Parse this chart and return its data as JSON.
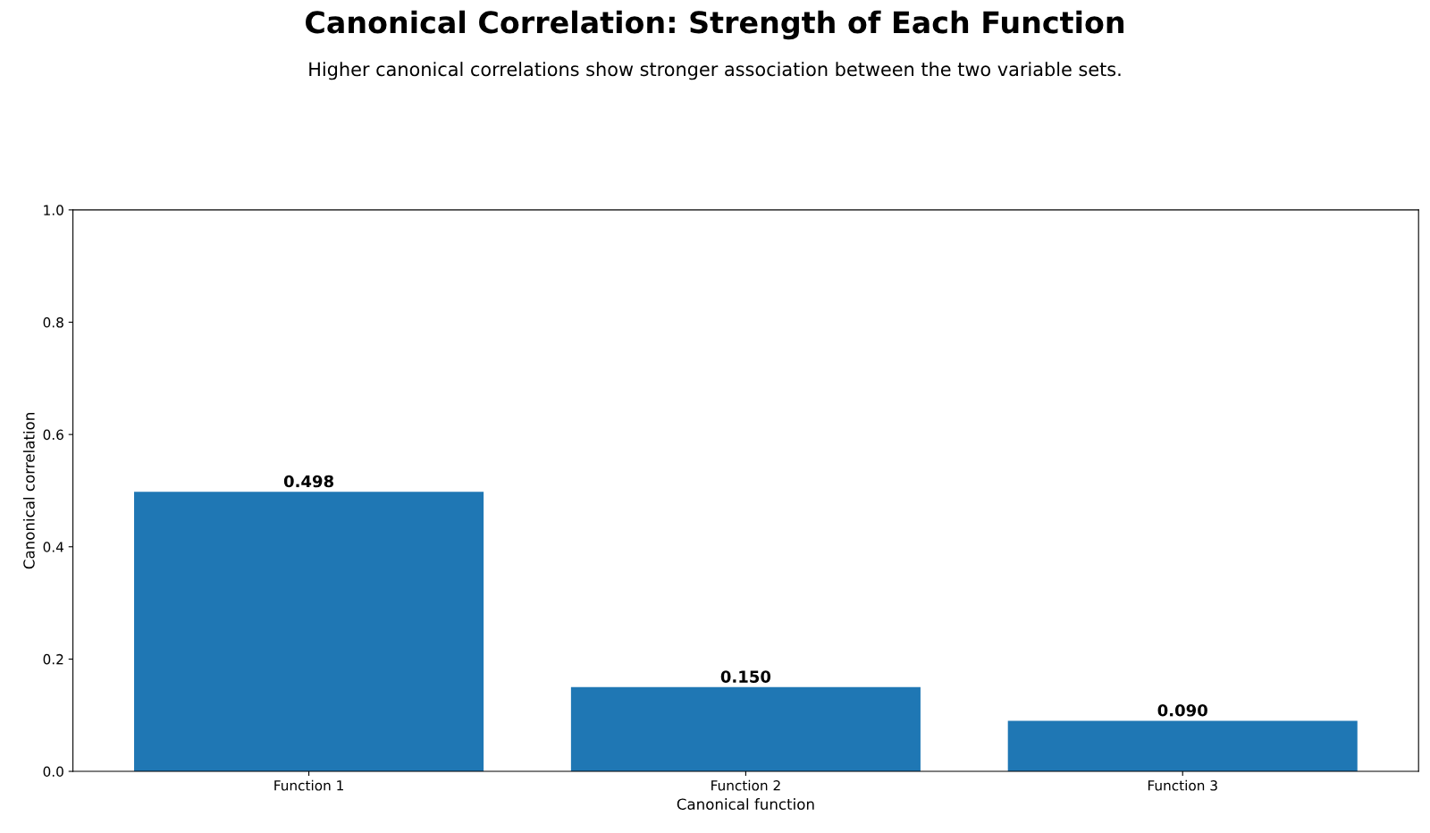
{
  "chart_data": {
    "type": "bar",
    "title": "Canonical Correlation: Strength of Each Function",
    "subtitle": "Higher canonical correlations show stronger association between the two variable sets.",
    "xlabel": "Canonical function",
    "ylabel": "Canonical correlation",
    "categories": [
      "Function 1",
      "Function 2",
      "Function 3"
    ],
    "values": [
      0.498,
      0.15,
      0.09
    ],
    "value_labels": [
      "0.498",
      "0.150",
      "0.090"
    ],
    "color": "#1f77b4",
    "ylim": [
      0,
      1
    ],
    "yticks": [
      {
        "value": 0,
        "label": "0.0"
      },
      {
        "value": 0.2,
        "label": "0.2"
      },
      {
        "value": 0.4,
        "label": "0.4"
      },
      {
        "value": 0.6,
        "label": "0.6"
      },
      {
        "value": 0.8,
        "label": "0.8"
      },
      {
        "value": 1,
        "label": "1.0"
      }
    ],
    "grid": false
  }
}
